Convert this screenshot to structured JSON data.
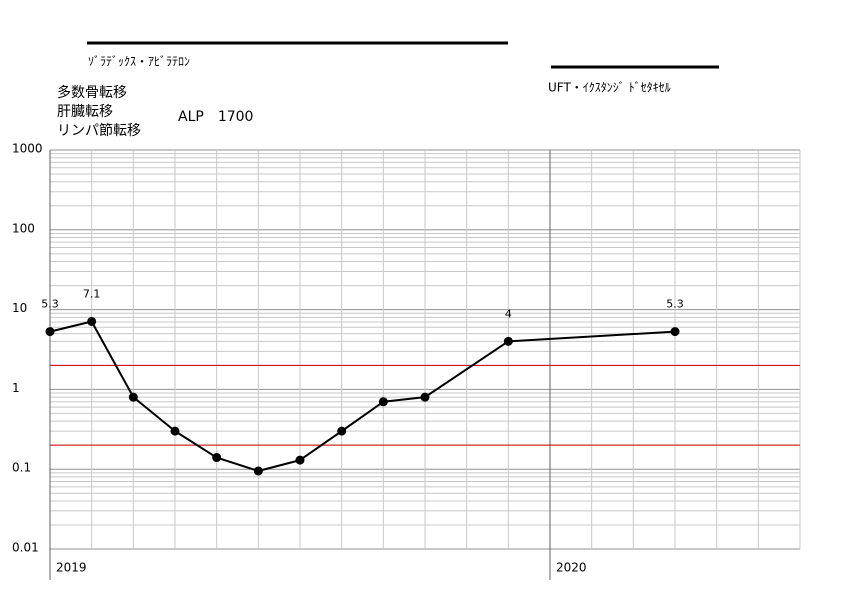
{
  "chart_data": {
    "type": "line",
    "annotations": [
      "ｿﾞﾗﾃﾞｯｸｽ・ｱﾋﾞﾗﾃﾛﾝ",
      "UFT・ｲｸｽﾀﾝｼﾞ ﾄﾞｾﾀｷｾﾙ",
      "多数骨転移",
      "肝臓転移",
      "リンパ節転移",
      "ALP　1700"
    ],
    "categories": [
      "2019",
      null,
      null,
      null,
      null,
      null,
      null,
      null,
      null,
      null,
      null,
      null,
      "2020",
      null,
      null,
      null,
      null,
      null,
      null
    ],
    "values": [
      5.3,
      7.1,
      0.8,
      0.3,
      0.14,
      0.095,
      0.13,
      0.3,
      0.7,
      0.8,
      null,
      4,
      null,
      null,
      null,
      5.3,
      null,
      null,
      null
    ],
    "value_labels": [
      "5.3",
      "7.1",
      null,
      null,
      null,
      null,
      null,
      null,
      null,
      null,
      null,
      "4",
      null,
      null,
      null,
      "5.3",
      null,
      null,
      null
    ],
    "color": "#000000",
    "ylim": [
      0.01,
      1000
    ],
    "yticks": [
      0.01,
      0.1,
      1,
      10,
      100,
      1000
    ],
    "log_scale": true,
    "grid": true,
    "reference_lines": [
      {
        "value": 2,
        "color": "#d00000"
      },
      {
        "value": 0.2,
        "color": "#d00000"
      }
    ]
  }
}
